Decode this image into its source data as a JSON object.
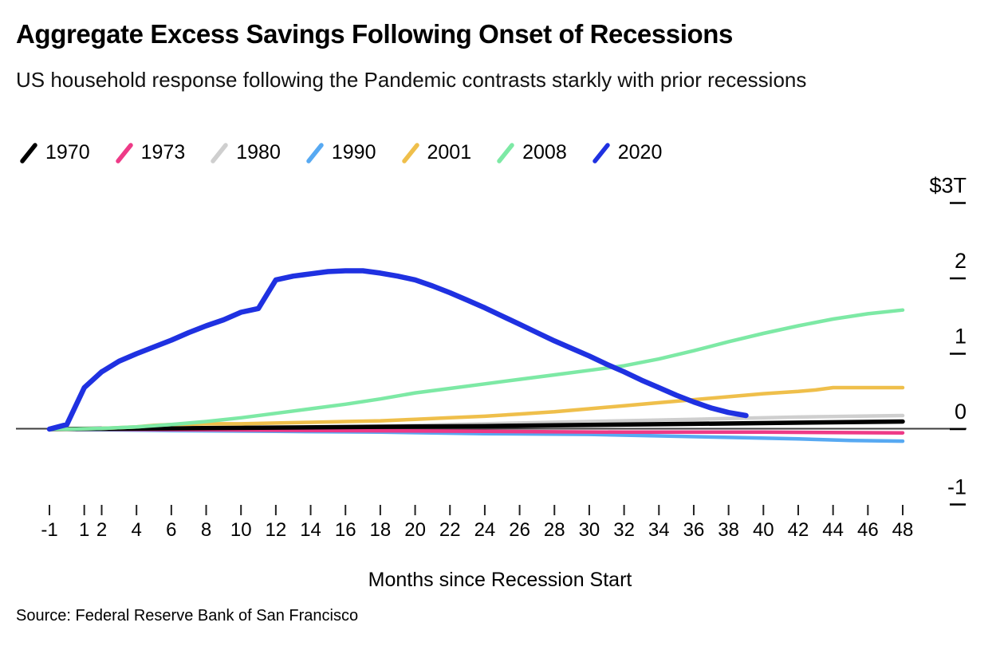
{
  "header": {
    "title": "Aggregate Excess Savings Following Onset of Recessions",
    "subtitle": "US household response following the Pandemic contrasts starkly with prior recessions"
  },
  "footer": {
    "source": "Source: Federal Reserve Bank of San Francisco"
  },
  "chart_data": {
    "type": "line",
    "title": "Aggregate Excess Savings Following Onset of Recessions",
    "subtitle": "US household response following the Pandemic contrasts starkly with prior recessions",
    "xlabel": "Months since Recession Start",
    "ylabel": "",
    "unit": "trillions of US dollars",
    "xlim": [
      -1,
      48
    ],
    "ylim": [
      -1.35,
      3.1
    ],
    "grid": false,
    "legend_position": "top",
    "x_ticks": {
      "values": [
        -1,
        1,
        2,
        4,
        6,
        8,
        10,
        12,
        14,
        16,
        18,
        20,
        22,
        24,
        26,
        28,
        30,
        32,
        34,
        36,
        38,
        40,
        42,
        44,
        46,
        48
      ],
      "labels": [
        "-1",
        "1",
        "2",
        "4",
        "6",
        "8",
        "10",
        "12",
        "14",
        "16",
        "18",
        "20",
        "22",
        "24",
        "26",
        "28",
        "30",
        "32",
        "34",
        "36",
        "38",
        "40",
        "42",
        "44",
        "46",
        "48"
      ]
    },
    "y_ticks": {
      "values": [
        3,
        2,
        1,
        0,
        -1
      ],
      "labels": [
        "$3T",
        "2",
        "1",
        "0",
        "-1"
      ]
    },
    "series": [
      {
        "name": "1970",
        "color": "#000000",
        "points": [
          [
            -1,
            0
          ],
          [
            12,
            0.02
          ],
          [
            24,
            0.04
          ],
          [
            36,
            0.07
          ],
          [
            48,
            0.1
          ]
        ]
      },
      {
        "name": "1973",
        "color": "#ee3a87",
        "points": [
          [
            -1,
            0
          ],
          [
            8,
            -0.01
          ],
          [
            16,
            -0.02
          ],
          [
            24,
            -0.03
          ],
          [
            32,
            -0.04
          ],
          [
            40,
            -0.04
          ],
          [
            48,
            -0.05
          ]
        ]
      },
      {
        "name": "1980",
        "color": "#cfcfcf",
        "points": [
          [
            -1,
            0
          ],
          [
            6,
            0.01
          ],
          [
            12,
            0.02
          ],
          [
            18,
            0.04
          ],
          [
            24,
            0.07
          ],
          [
            30,
            0.1
          ],
          [
            36,
            0.13
          ],
          [
            42,
            0.16
          ],
          [
            48,
            0.18
          ]
        ]
      },
      {
        "name": "1990",
        "color": "#57a9f2",
        "points": [
          [
            -1,
            0
          ],
          [
            6,
            -0.02
          ],
          [
            12,
            -0.03
          ],
          [
            18,
            -0.04
          ],
          [
            24,
            -0.06
          ],
          [
            30,
            -0.07
          ],
          [
            34,
            -0.09
          ],
          [
            38,
            -0.11
          ],
          [
            42,
            -0.13
          ],
          [
            45,
            -0.15
          ],
          [
            48,
            -0.16
          ]
        ]
      },
      {
        "name": "2001",
        "color": "#efbf4b",
        "points": [
          [
            -1,
            0
          ],
          [
            0,
            0
          ],
          [
            2,
            0.01
          ],
          [
            4,
            0.03
          ],
          [
            5,
            0.05
          ],
          [
            6,
            0.06
          ],
          [
            8,
            0.07
          ],
          [
            10,
            0.07
          ],
          [
            12,
            0.08
          ],
          [
            14,
            0.09
          ],
          [
            16,
            0.1
          ],
          [
            18,
            0.11
          ],
          [
            20,
            0.13
          ],
          [
            22,
            0.15
          ],
          [
            24,
            0.17
          ],
          [
            26,
            0.2
          ],
          [
            28,
            0.23
          ],
          [
            30,
            0.27
          ],
          [
            32,
            0.31
          ],
          [
            34,
            0.35
          ],
          [
            36,
            0.39
          ],
          [
            38,
            0.43
          ],
          [
            40,
            0.47
          ],
          [
            42,
            0.5
          ],
          [
            43,
            0.52
          ],
          [
            44,
            0.55
          ],
          [
            46,
            0.55
          ],
          [
            48,
            0.55
          ]
        ]
      },
      {
        "name": "2008",
        "color": "#7de9a5",
        "points": [
          [
            -1,
            0
          ],
          [
            0,
            0
          ],
          [
            2,
            0.01
          ],
          [
            4,
            0.03
          ],
          [
            6,
            0.06
          ],
          [
            8,
            0.1
          ],
          [
            10,
            0.15
          ],
          [
            12,
            0.21
          ],
          [
            14,
            0.27
          ],
          [
            16,
            0.33
          ],
          [
            18,
            0.4
          ],
          [
            20,
            0.48
          ],
          [
            22,
            0.54
          ],
          [
            24,
            0.6
          ],
          [
            26,
            0.66
          ],
          [
            28,
            0.72
          ],
          [
            30,
            0.78
          ],
          [
            32,
            0.84
          ],
          [
            34,
            0.93
          ],
          [
            36,
            1.04
          ],
          [
            38,
            1.16
          ],
          [
            40,
            1.27
          ],
          [
            42,
            1.37
          ],
          [
            44,
            1.46
          ],
          [
            46,
            1.53
          ],
          [
            48,
            1.58
          ]
        ]
      },
      {
        "name": "2020",
        "color": "#1f31e1",
        "points": [
          [
            -1,
            0
          ],
          [
            0,
            0.06
          ],
          [
            1,
            0.55
          ],
          [
            2,
            0.76
          ],
          [
            3,
            0.9
          ],
          [
            4,
            1.0
          ],
          [
            5,
            1.09
          ],
          [
            6,
            1.18
          ],
          [
            7,
            1.28
          ],
          [
            8,
            1.37
          ],
          [
            9,
            1.45
          ],
          [
            10,
            1.55
          ],
          [
            11,
            1.6
          ],
          [
            12,
            1.98
          ],
          [
            13,
            2.03
          ],
          [
            14,
            2.06
          ],
          [
            15,
            2.09
          ],
          [
            16,
            2.1
          ],
          [
            17,
            2.1
          ],
          [
            18,
            2.07
          ],
          [
            19,
            2.03
          ],
          [
            20,
            1.98
          ],
          [
            21,
            1.9
          ],
          [
            22,
            1.81
          ],
          [
            23,
            1.71
          ],
          [
            24,
            1.61
          ],
          [
            25,
            1.5
          ],
          [
            26,
            1.39
          ],
          [
            27,
            1.28
          ],
          [
            28,
            1.17
          ],
          [
            29,
            1.07
          ],
          [
            30,
            0.97
          ],
          [
            31,
            0.86
          ],
          [
            32,
            0.76
          ],
          [
            33,
            0.65
          ],
          [
            34,
            0.55
          ],
          [
            35,
            0.45
          ],
          [
            36,
            0.36
          ],
          [
            37,
            0.28
          ],
          [
            38,
            0.22
          ],
          [
            39,
            0.18
          ]
        ]
      }
    ]
  }
}
